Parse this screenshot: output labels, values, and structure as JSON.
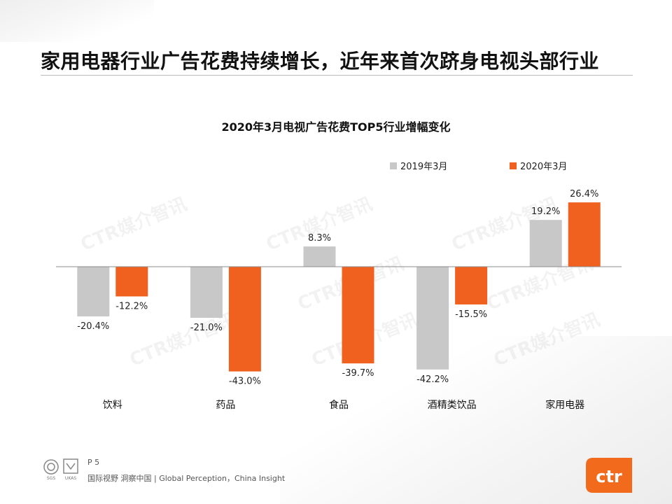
{
  "page": {
    "title": "家用电器行业广告花费持续增长，近年来首次跻身电视头部行业",
    "watermark": "CTR媒介智讯",
    "footer": {
      "page_number": "P 5",
      "tagline": "国际视野 洞察中国 | Global Perception，China Insight",
      "brand_logo_text": "ctr",
      "badge_labels": [
        "SGS",
        "UKAS"
      ]
    }
  },
  "colors": {
    "series_2019": "#c8c8c8",
    "series_2020": "#f0611f",
    "brand_orange": "#f26b1d"
  },
  "chart_data": {
    "type": "bar",
    "title": "2020年3月电视广告花费TOP5行业增幅变化",
    "categories": [
      "饮料",
      "药品",
      "食品",
      "酒精类饮品",
      "家用电器"
    ],
    "series": [
      {
        "name": "2019年3月",
        "values": [
          -20.4,
          -21.0,
          8.3,
          -42.2,
          19.2
        ],
        "labels": [
          "-20.4%",
          "-21.0%",
          "8.3%",
          "-42.2%",
          "19.2%"
        ]
      },
      {
        "name": "2020年3月",
        "values": [
          -12.2,
          -43.0,
          -39.7,
          -15.5,
          26.4
        ],
        "labels": [
          "-12.2%",
          "-43.0%",
          "-39.7%",
          "-15.5%",
          "26.4%"
        ]
      }
    ],
    "unit": "%",
    "ylim": [
      -45,
      30
    ],
    "grid": false,
    "legend_position": "top-right"
  }
}
